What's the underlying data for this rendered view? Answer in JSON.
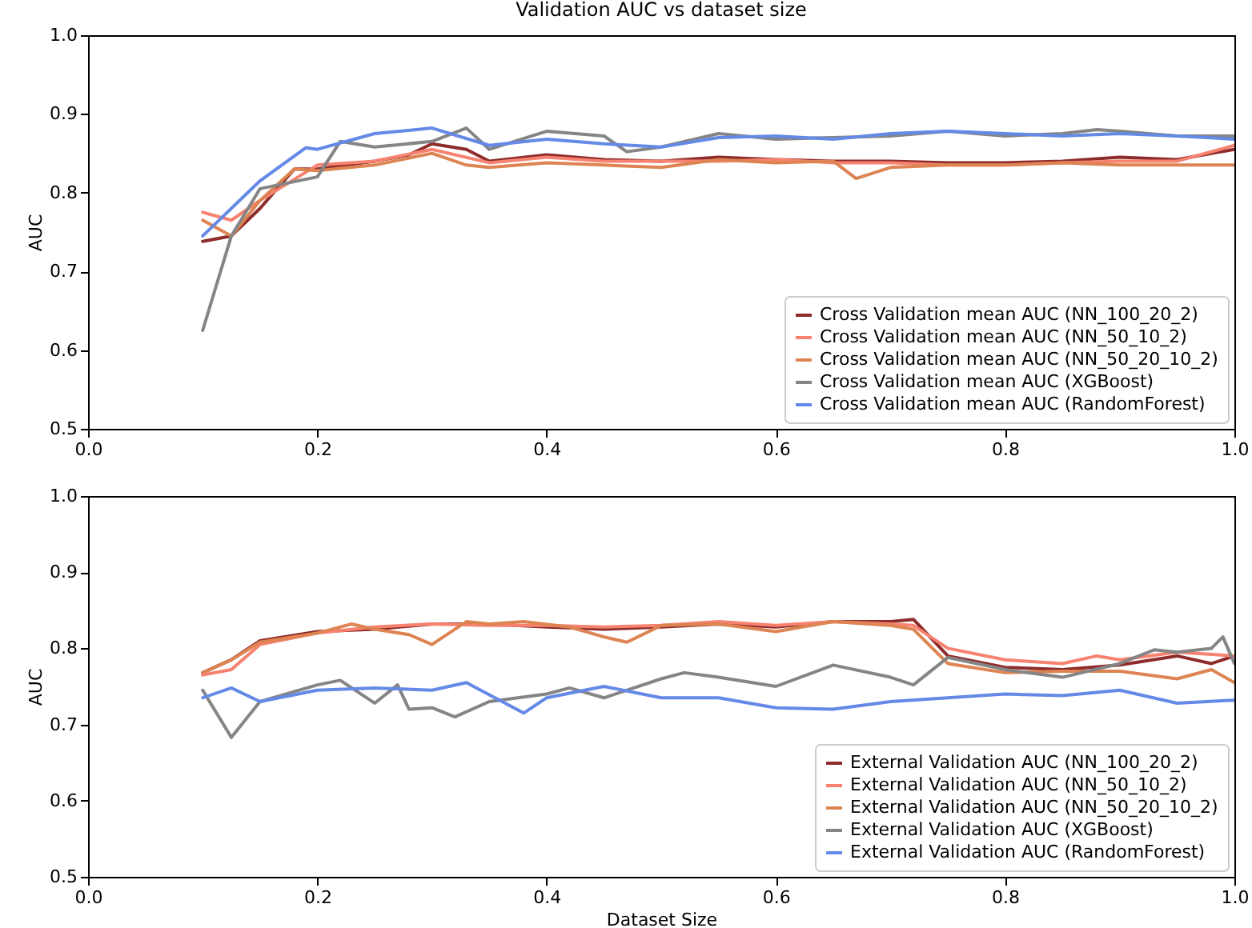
{
  "chart_data": [
    {
      "type": "line",
      "title": "Validation AUC vs dataset size",
      "ylabel": "AUC",
      "xlim": [
        0,
        1
      ],
      "ylim": [
        0.5,
        1
      ],
      "xticks": [
        {
          "value": 0,
          "label": "0.0"
        },
        {
          "value": 0.2,
          "label": "0.2"
        },
        {
          "value": 0.4,
          "label": "0.4"
        },
        {
          "value": 0.6,
          "label": "0.6"
        },
        {
          "value": 0.8,
          "label": "0.8"
        },
        {
          "value": 1,
          "label": "1.0"
        }
      ],
      "yticks": [
        {
          "value": 0.5,
          "label": "0.5"
        },
        {
          "value": 0.6,
          "label": "0.6"
        },
        {
          "value": 0.7,
          "label": "0.7"
        },
        {
          "value": 0.8,
          "label": "0.8"
        },
        {
          "value": 0.9,
          "label": "0.9"
        },
        {
          "value": 1,
          "label": "1.0"
        }
      ],
      "grid": false,
      "legend": "bottom right",
      "marker": "none",
      "line_style": "solid",
      "tick_labels": "xy",
      "series": [
        {
          "name": "Cross Validation mean AUC (NN_100_20_2)",
          "color": "#8e2c2c",
          "x": [
            0.1,
            0.125,
            0.15,
            0.18,
            0.2,
            0.25,
            0.28,
            0.3,
            0.33,
            0.35,
            0.4,
            0.45,
            0.5,
            0.55,
            0.6,
            0.65,
            0.7,
            0.75,
            0.8,
            0.85,
            0.9,
            0.95,
            1.0
          ],
          "values": [
            0.738,
            0.745,
            0.78,
            0.83,
            0.83,
            0.84,
            0.848,
            0.862,
            0.855,
            0.84,
            0.848,
            0.842,
            0.84,
            0.845,
            0.842,
            0.84,
            0.84,
            0.838,
            0.838,
            0.84,
            0.845,
            0.842,
            0.855
          ]
        },
        {
          "name": "Cross Validation mean AUC (NN_50_10_2)",
          "color": "#f7826f",
          "x": [
            0.1,
            0.125,
            0.15,
            0.2,
            0.25,
            0.3,
            0.35,
            0.4,
            0.45,
            0.5,
            0.55,
            0.6,
            0.65,
            0.7,
            0.75,
            0.8,
            0.85,
            0.9,
            0.95,
            1.0
          ],
          "values": [
            0.775,
            0.765,
            0.79,
            0.835,
            0.84,
            0.855,
            0.838,
            0.845,
            0.84,
            0.84,
            0.84,
            0.842,
            0.838,
            0.838,
            0.835,
            0.835,
            0.838,
            0.84,
            0.84,
            0.86
          ]
        },
        {
          "name": "Cross Validation mean AUC (NN_50_20_10_2)",
          "color": "#dd8452",
          "x": [
            0.1,
            0.125,
            0.15,
            0.18,
            0.2,
            0.25,
            0.3,
            0.33,
            0.35,
            0.4,
            0.45,
            0.5,
            0.55,
            0.6,
            0.65,
            0.67,
            0.7,
            0.75,
            0.8,
            0.85,
            0.9,
            0.95,
            1.0
          ],
          "values": [
            0.765,
            0.745,
            0.79,
            0.83,
            0.828,
            0.835,
            0.85,
            0.835,
            0.832,
            0.838,
            0.835,
            0.832,
            0.842,
            0.838,
            0.84,
            0.818,
            0.832,
            0.835,
            0.835,
            0.838,
            0.835,
            0.835,
            0.835
          ]
        },
        {
          "name": "Cross Validation mean AUC (XGBoost)",
          "color": "#858585",
          "x": [
            0.1,
            0.125,
            0.15,
            0.2,
            0.22,
            0.25,
            0.3,
            0.33,
            0.35,
            0.4,
            0.45,
            0.47,
            0.5,
            0.55,
            0.6,
            0.65,
            0.7,
            0.75,
            0.8,
            0.85,
            0.88,
            0.9,
            0.95,
            1.0
          ],
          "values": [
            0.625,
            0.745,
            0.805,
            0.82,
            0.865,
            0.858,
            0.865,
            0.882,
            0.855,
            0.878,
            0.872,
            0.852,
            0.858,
            0.875,
            0.868,
            0.87,
            0.872,
            0.878,
            0.872,
            0.875,
            0.88,
            0.878,
            0.872,
            0.872
          ]
        },
        {
          "name": "Cross Validation mean AUC (RandomForest)",
          "color": "#6489e6",
          "x": [
            0.1,
            0.15,
            0.19,
            0.2,
            0.25,
            0.3,
            0.35,
            0.4,
            0.45,
            0.5,
            0.55,
            0.6,
            0.65,
            0.7,
            0.75,
            0.8,
            0.85,
            0.9,
            0.95,
            1.0
          ],
          "values": [
            0.745,
            0.815,
            0.857,
            0.855,
            0.875,
            0.882,
            0.86,
            0.868,
            0.862,
            0.858,
            0.87,
            0.872,
            0.868,
            0.875,
            0.878,
            0.875,
            0.872,
            0.875,
            0.872,
            0.868
          ]
        }
      ]
    },
    {
      "type": "line",
      "xlabel": "Dataset Size",
      "ylabel": "AUC",
      "xlim": [
        0,
        1
      ],
      "ylim": [
        0.5,
        1
      ],
      "xticks": [
        {
          "value": 0,
          "label": "0.0"
        },
        {
          "value": 0.2,
          "label": "0.2"
        },
        {
          "value": 0.4,
          "label": "0.4"
        },
        {
          "value": 0.6,
          "label": "0.6"
        },
        {
          "value": 0.8,
          "label": "0.8"
        },
        {
          "value": 1,
          "label": "1.0"
        }
      ],
      "yticks": [
        {
          "value": 0.5,
          "label": "0.5"
        },
        {
          "value": 0.6,
          "label": "0.6"
        },
        {
          "value": 0.7,
          "label": "0.7"
        },
        {
          "value": 0.8,
          "label": "0.8"
        },
        {
          "value": 0.9,
          "label": "0.9"
        },
        {
          "value": 1,
          "label": "1.0"
        }
      ],
      "grid": false,
      "legend": "bottom right",
      "marker": "none",
      "line_style": "solid",
      "tick_labels": "xy",
      "series": [
        {
          "name": "External Validation AUC (NN_100_20_2)",
          "color": "#8e2c2c",
          "x": [
            0.1,
            0.125,
            0.15,
            0.2,
            0.25,
            0.3,
            0.35,
            0.4,
            0.45,
            0.5,
            0.55,
            0.6,
            0.65,
            0.7,
            0.72,
            0.75,
            0.8,
            0.85,
            0.9,
            0.95,
            0.98,
            1.0
          ],
          "values": [
            0.768,
            0.785,
            0.81,
            0.822,
            0.825,
            0.832,
            0.832,
            0.828,
            0.825,
            0.828,
            0.832,
            0.828,
            0.835,
            0.835,
            0.838,
            0.79,
            0.775,
            0.772,
            0.778,
            0.79,
            0.78,
            0.79
          ]
        },
        {
          "name": "External Validation AUC (NN_50_10_2)",
          "color": "#f7826f",
          "x": [
            0.1,
            0.125,
            0.15,
            0.2,
            0.25,
            0.3,
            0.35,
            0.4,
            0.45,
            0.5,
            0.55,
            0.6,
            0.65,
            0.7,
            0.72,
            0.75,
            0.8,
            0.85,
            0.88,
            0.9,
            0.95,
            1.0
          ],
          "values": [
            0.765,
            0.772,
            0.805,
            0.82,
            0.828,
            0.832,
            0.83,
            0.83,
            0.828,
            0.83,
            0.835,
            0.83,
            0.835,
            0.832,
            0.83,
            0.8,
            0.785,
            0.78,
            0.79,
            0.785,
            0.795,
            0.79
          ]
        },
        {
          "name": "External Validation AUC (NN_50_20_10_2)",
          "color": "#dd8452",
          "x": [
            0.1,
            0.125,
            0.15,
            0.2,
            0.23,
            0.25,
            0.28,
            0.3,
            0.33,
            0.35,
            0.38,
            0.42,
            0.45,
            0.47,
            0.5,
            0.55,
            0.6,
            0.65,
            0.7,
            0.72,
            0.75,
            0.8,
            0.85,
            0.9,
            0.95,
            0.98,
            1.0
          ],
          "values": [
            0.768,
            0.785,
            0.808,
            0.82,
            0.832,
            0.825,
            0.818,
            0.805,
            0.835,
            0.832,
            0.835,
            0.828,
            0.815,
            0.808,
            0.83,
            0.832,
            0.822,
            0.835,
            0.83,
            0.825,
            0.78,
            0.768,
            0.77,
            0.77,
            0.76,
            0.772,
            0.755
          ]
        },
        {
          "name": "External Validation AUC (XGBoost)",
          "color": "#858585",
          "x": [
            0.1,
            0.125,
            0.15,
            0.2,
            0.22,
            0.25,
            0.27,
            0.28,
            0.3,
            0.32,
            0.35,
            0.4,
            0.42,
            0.45,
            0.5,
            0.52,
            0.55,
            0.6,
            0.65,
            0.7,
            0.72,
            0.75,
            0.8,
            0.85,
            0.9,
            0.93,
            0.95,
            0.98,
            0.99,
            1.0
          ],
          "values": [
            0.745,
            0.683,
            0.73,
            0.752,
            0.758,
            0.728,
            0.752,
            0.72,
            0.722,
            0.71,
            0.73,
            0.74,
            0.748,
            0.735,
            0.76,
            0.768,
            0.762,
            0.75,
            0.778,
            0.762,
            0.752,
            0.788,
            0.772,
            0.762,
            0.78,
            0.798,
            0.795,
            0.8,
            0.815,
            0.78
          ]
        },
        {
          "name": "External Validation AUC (RandomForest)",
          "color": "#6489e6",
          "x": [
            0.1,
            0.125,
            0.15,
            0.2,
            0.25,
            0.3,
            0.33,
            0.38,
            0.4,
            0.45,
            0.5,
            0.55,
            0.6,
            0.65,
            0.7,
            0.75,
            0.8,
            0.85,
            0.9,
            0.95,
            1.0
          ],
          "values": [
            0.735,
            0.748,
            0.73,
            0.745,
            0.748,
            0.745,
            0.755,
            0.715,
            0.735,
            0.75,
            0.735,
            0.735,
            0.722,
            0.72,
            0.73,
            0.735,
            0.74,
            0.738,
            0.745,
            0.728,
            0.732
          ]
        }
      ]
    }
  ]
}
